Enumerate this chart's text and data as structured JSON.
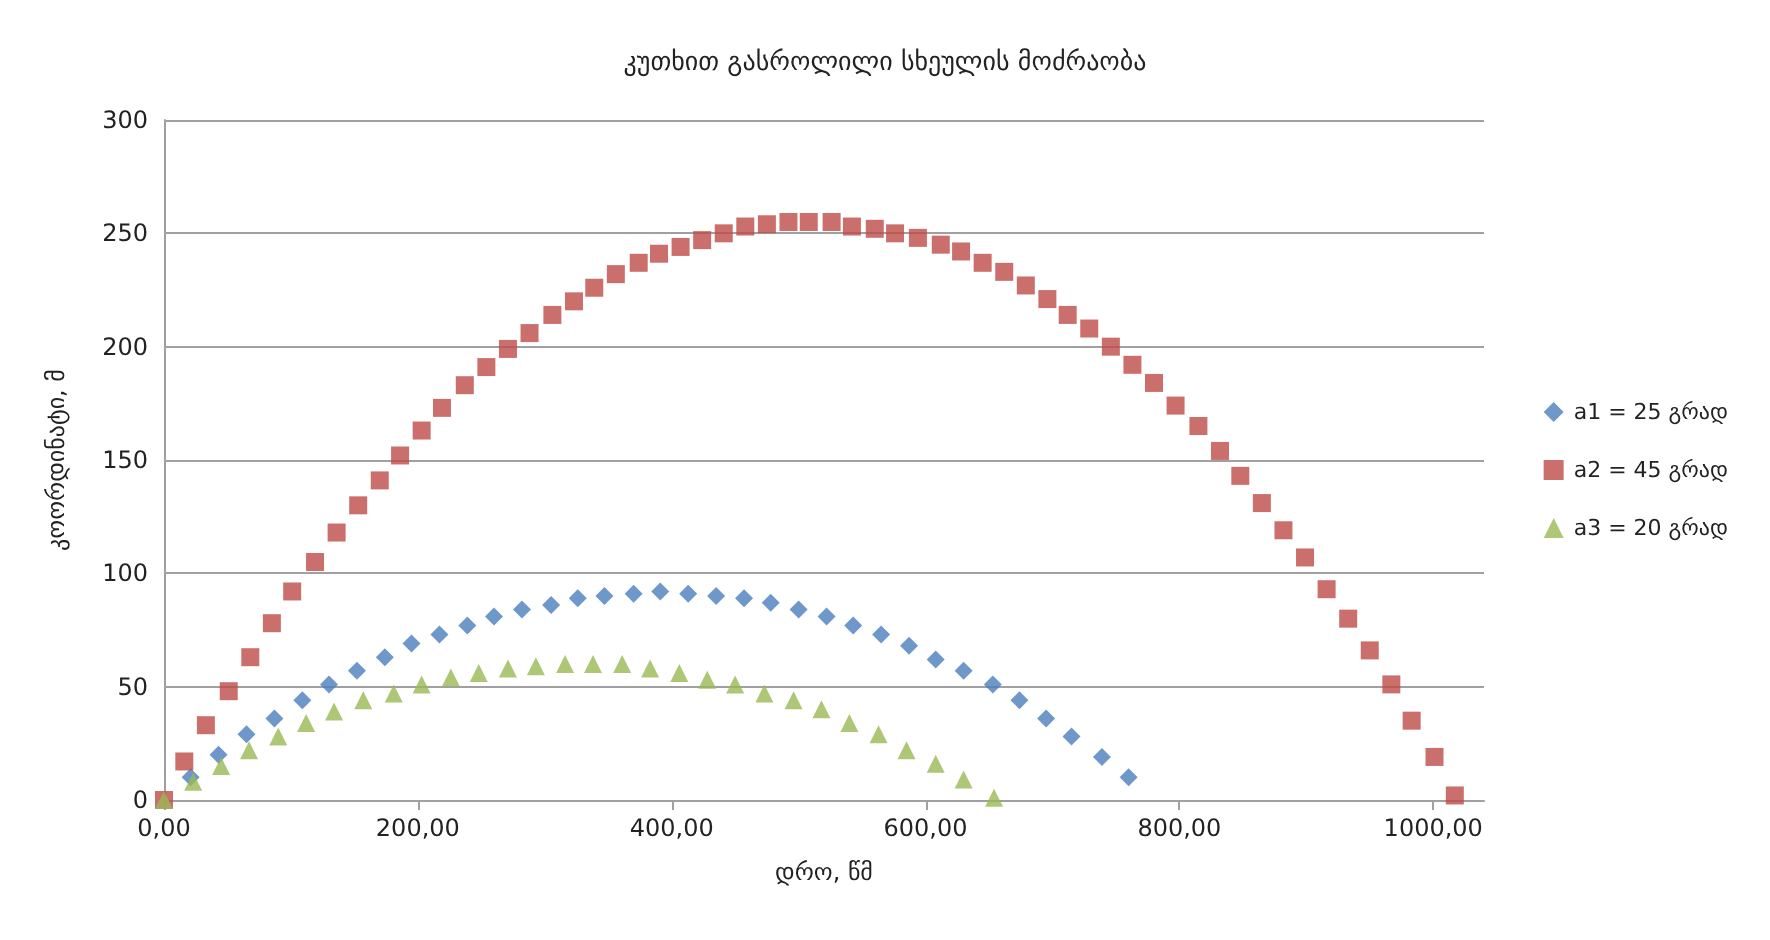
{
  "chart_data": {
    "type": "scatter",
    "title": "კუთხით გასროლილი სხეულის მოძრაობა",
    "xlabel": "დრო, წმ",
    "ylabel": "კოორდინატი, მ",
    "series": [
      {
        "name": "a1 = 25 გრად",
        "color": "#4a7ebb",
        "marker": "diamond",
        "x": [
          21,
          43,
          65,
          87,
          109,
          130,
          152,
          174,
          195,
          217,
          239,
          260,
          282,
          305,
          326,
          347,
          370,
          391,
          413,
          435,
          457,
          478,
          500,
          522,
          543,
          565,
          587,
          608,
          630,
          653,
          674,
          695,
          715,
          739,
          760
        ],
        "values": [
          10,
          20,
          29,
          36,
          44,
          51,
          57,
          63,
          69,
          73,
          77,
          81,
          84,
          86,
          89,
          90,
          91,
          92,
          91,
          90,
          89,
          87,
          84,
          81,
          77,
          73,
          68,
          62,
          57,
          51,
          44,
          36,
          28,
          19,
          10
        ]
      },
      {
        "name": "a2 = 45 გრად",
        "color": "#be4b48",
        "marker": "square",
        "x": [
          0,
          16,
          33,
          51,
          68,
          85,
          101,
          119,
          136,
          153,
          170,
          186,
          203,
          219,
          237,
          254,
          271,
          288,
          306,
          323,
          339,
          356,
          374,
          390,
          407,
          424,
          441,
          458,
          475,
          492,
          508,
          526,
          542,
          560,
          576,
          594,
          612,
          628,
          645,
          662,
          679,
          696,
          712,
          729,
          746,
          763,
          780,
          797,
          815,
          832,
          848,
          865,
          882,
          899,
          916,
          933,
          950,
          967,
          983,
          1001,
          1017
        ],
        "values": [
          0,
          17,
          33,
          48,
          63,
          78,
          92,
          105,
          118,
          130,
          141,
          152,
          163,
          173,
          183,
          191,
          199,
          206,
          214,
          220,
          226,
          232,
          237,
          241,
          244,
          247,
          250,
          253,
          254,
          255,
          255,
          255,
          253,
          252,
          250,
          248,
          245,
          242,
          237,
          233,
          227,
          221,
          214,
          208,
          200,
          192,
          184,
          174,
          165,
          154,
          143,
          131,
          119,
          107,
          93,
          80,
          66,
          51,
          35,
          19,
          2
        ]
      },
      {
        "name": "a3 = 20 გრად",
        "color": "#98b954",
        "marker": "triangle",
        "x": [
          0,
          23,
          45,
          67,
          90,
          112,
          134,
          157,
          181,
          203,
          226,
          248,
          271,
          293,
          316,
          338,
          361,
          383,
          406,
          428,
          450,
          473,
          496,
          518,
          540,
          563,
          585,
          608,
          630,
          654
        ],
        "values": [
          0,
          8,
          15,
          22,
          28,
          34,
          39,
          44,
          47,
          51,
          54,
          56,
          58,
          59,
          60,
          60,
          60,
          58,
          56,
          53,
          51,
          47,
          44,
          40,
          34,
          29,
          22,
          16,
          9,
          1
        ]
      }
    ],
    "xlim": [
      0,
      1040
    ],
    "xticks": [
      {
        "value": 0,
        "label": "0,00"
      },
      {
        "value": 200,
        "label": "200,00"
      },
      {
        "value": 400,
        "label": "400,00"
      },
      {
        "value": 600,
        "label": "600,00"
      },
      {
        "value": 800,
        "label": "800,00"
      },
      {
        "value": 1000,
        "label": "1000,00"
      }
    ],
    "ylim": [
      0,
      300
    ],
    "yticks": [
      0,
      50,
      100,
      150,
      200,
      250,
      300
    ],
    "grid": "y",
    "legend": "right"
  }
}
